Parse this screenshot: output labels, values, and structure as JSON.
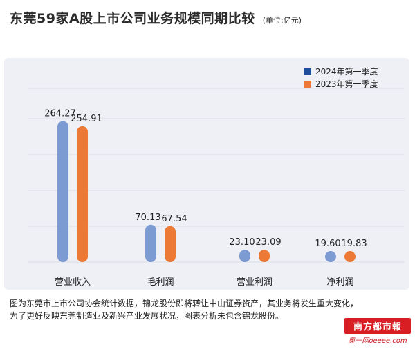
{
  "header": {
    "title": "东莞59家A股上市公司业务规模同期比较",
    "unit": "(单位:亿元)"
  },
  "colors": {
    "series_2024": "#7c9bd3",
    "series_2023": "#ec7a36",
    "legend_2024": "#1f4e9c",
    "legend_2023": "#ec7a36",
    "panel": "#eef0f6",
    "gridline": "#d8dbe4"
  },
  "chart_data": {
    "type": "bar",
    "title": "东莞59家A股上市公司业务规模同期比较",
    "unit": "(单位:亿元)",
    "categories": [
      "营业收入",
      "毛利润",
      "营业利润",
      "净利润"
    ],
    "series": [
      {
        "name": "2024年第一季度",
        "values": [
          264.27,
          70.13,
          23.1,
          19.6
        ],
        "labels": [
          "264.27",
          "70.13",
          "23.10",
          "19.60"
        ]
      },
      {
        "name": "2023年第一季度",
        "values": [
          254.91,
          67.54,
          23.09,
          19.83
        ],
        "labels": [
          "254.91",
          "67.54",
          "23.09",
          "19.83"
        ]
      }
    ],
    "ylim": [
      0,
      300
    ],
    "grid": true,
    "legend_position": "top-right"
  },
  "caption": {
    "line1": "图为东莞市上市公司协会统计数据，锦龙股份即将转让中山证券资产，其业务将发生重大变化，",
    "line2": "为了更好反映东莞制造业及新兴产业发展状况，图表分析未包含锦龙股份。"
  },
  "brand": {
    "logo_text": "南方都市報",
    "site_text": "奥一网oeeee.com"
  }
}
